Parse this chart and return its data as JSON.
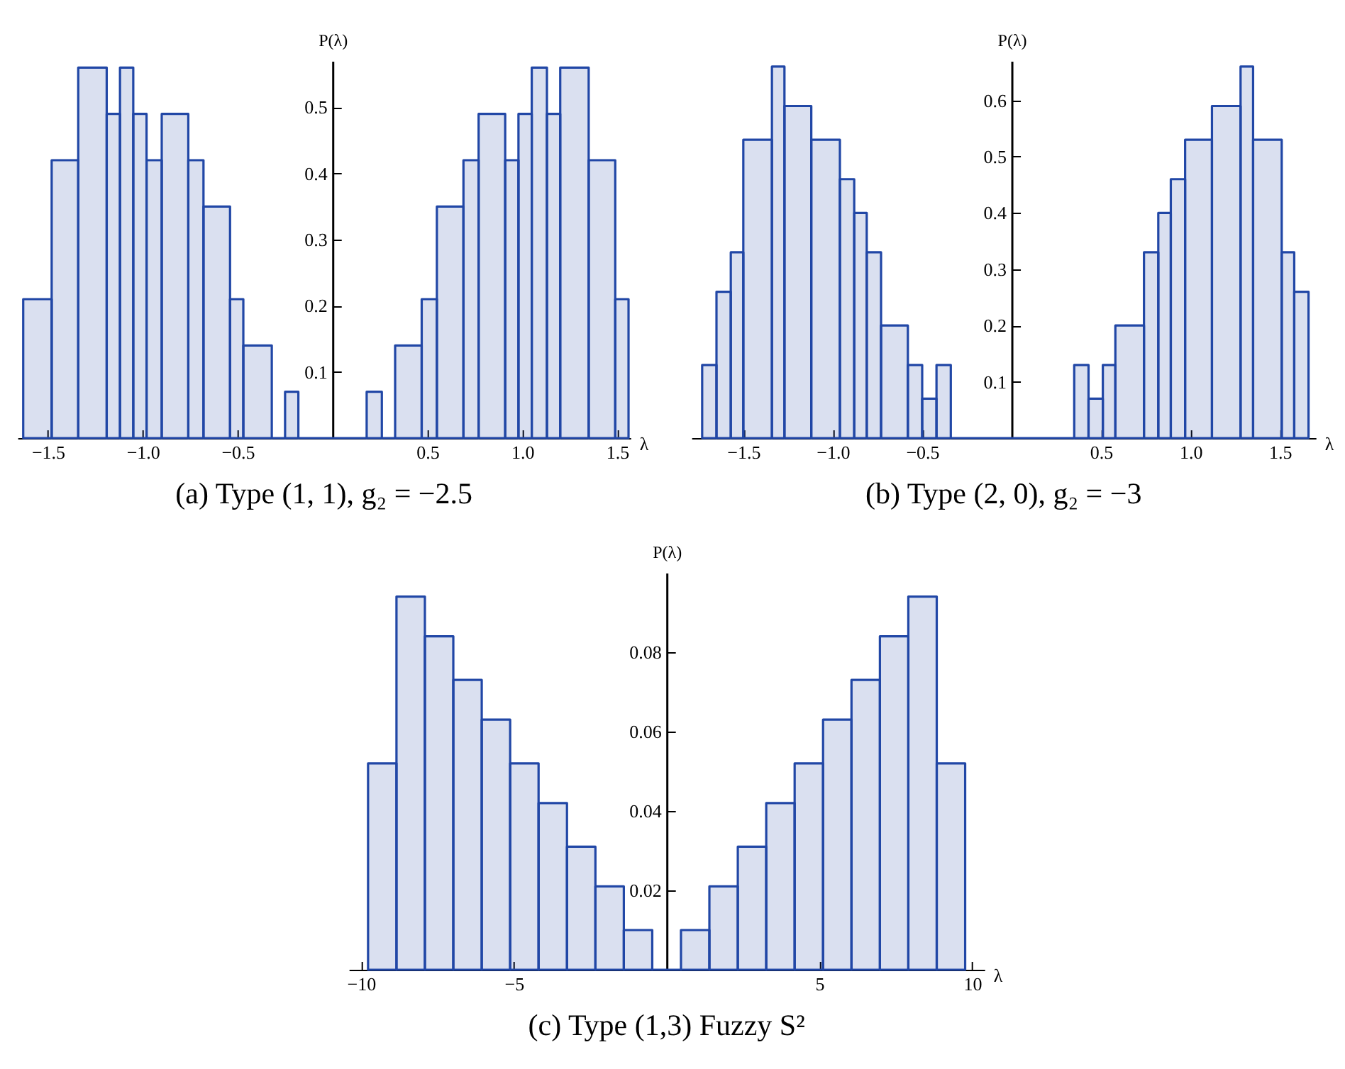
{
  "chart_data": [
    {
      "type": "histogram",
      "title": "(a) Type (1, 1), g₂ = −2.5",
      "xlabel": "λ",
      "ylabel": "P(λ)",
      "color": "#2147a6",
      "bins": [
        -1.63,
        -1.48,
        -1.34,
        -1.19,
        -1.12,
        -1.05,
        -0.98,
        -0.9,
        -0.76,
        -0.68,
        -0.54,
        -0.47,
        -0.32,
        -0.25,
        -0.18,
        0.18,
        0.26,
        0.33,
        0.47,
        0.55,
        0.69,
        0.77,
        0.91,
        0.98,
        1.05,
        1.13,
        1.2,
        1.35,
        1.49,
        1.56
      ],
      "values": [
        0.21,
        0.42,
        0.56,
        0.49,
        0.56,
        0.49,
        0.42,
        0.49,
        0.42,
        0.35,
        0.21,
        0.14,
        0,
        0.07,
        0,
        0.07,
        0,
        0.14,
        0.21,
        0.35,
        0.42,
        0.49,
        0.42,
        0.49,
        0.56,
        0.49,
        0.56,
        0.42,
        0.21
      ],
      "xlim": [
        -1.66,
        1.57
      ],
      "ylim": [
        0,
        0.57
      ],
      "xticks": [
        {
          "value": -1.5,
          "label": "−1.5"
        },
        {
          "value": -1,
          "label": "−1.0"
        },
        {
          "value": -0.5,
          "label": "−0.5"
        },
        0.5,
        {
          "value": 1,
          "label": "1.0"
        },
        1.5
      ],
      "yticks": [
        0.1,
        0.2,
        0.3,
        0.4,
        0.5
      ],
      "grid": false
    },
    {
      "type": "histogram",
      "title": "(b) Type (2, 0), g₂ = −3",
      "xlabel": "λ",
      "ylabel": "P(λ)",
      "color": "#2147a6",
      "bins": [
        -1.73,
        -1.65,
        -1.57,
        -1.5,
        -1.34,
        -1.27,
        -1.12,
        -0.96,
        -0.88,
        -0.81,
        -0.73,
        -0.58,
        -0.5,
        -0.42,
        -0.34,
        0.35,
        0.43,
        0.51,
        0.58,
        0.74,
        0.82,
        0.89,
        0.97,
        1.12,
        1.28,
        1.35,
        1.51,
        1.58,
        1.66
      ],
      "values": [
        0.13,
        0.26,
        0.33,
        0.53,
        0.66,
        0.59,
        0.53,
        0.46,
        0.4,
        0.33,
        0.2,
        0.13,
        0.07,
        0.13,
        0,
        0.13,
        0.07,
        0.13,
        0.2,
        0.33,
        0.4,
        0.46,
        0.53,
        0.59,
        0.66,
        0.53,
        0.33,
        0.26
      ],
      "xlim": [
        -1.79,
        1.7
      ],
      "ylim": [
        0,
        0.67
      ],
      "xticks": [
        {
          "value": -1.5,
          "label": "−1.5"
        },
        {
          "value": -1,
          "label": "−1.0"
        },
        {
          "value": -0.5,
          "label": "−0.5"
        },
        0.5,
        {
          "value": 1,
          "label": "1.0"
        },
        1.5
      ],
      "yticks": [
        0.1,
        0.2,
        0.3,
        0.4,
        0.5,
        0.6
      ],
      "grid": false
    },
    {
      "type": "histogram",
      "title": "(c) Type (1,3) Fuzzy S²",
      "xlabel": "λ",
      "ylabel": "P(λ)",
      "color": "#2147a6",
      "bins": [
        -9.77,
        -8.84,
        -7.91,
        -6.98,
        -6.05,
        -5.12,
        -4.19,
        -3.26,
        -2.33,
        -1.4,
        -0.47,
        0.47,
        1.4,
        2.33,
        3.26,
        4.19,
        5.12,
        6.05,
        6.98,
        7.91,
        8.84,
        9.77
      ],
      "values": [
        0.052,
        0.094,
        0.084,
        0.073,
        0.063,
        0.052,
        0.042,
        0.031,
        0.021,
        0.01,
        0,
        0.01,
        0.021,
        0.031,
        0.042,
        0.052,
        0.063,
        0.073,
        0.084,
        0.094,
        0.052
      ],
      "xlim": [
        -10.4,
        10.4
      ],
      "ylim": [
        0,
        0.1
      ],
      "xticks": [
        {
          "value": -10,
          "label": "−10"
        },
        {
          "value": -5,
          "label": "−5"
        },
        5,
        10
      ],
      "yticks": [
        0.02,
        0.04,
        0.06,
        0.08
      ],
      "grid": false
    }
  ]
}
